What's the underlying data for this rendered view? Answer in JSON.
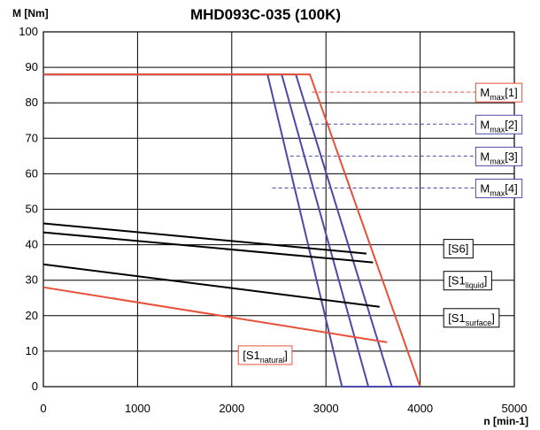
{
  "chart_data": {
    "type": "line",
    "title": "MHD093C-035 (100K)",
    "ylabel": "M [Nm]",
    "xlabel": "n [min-1]",
    "xlim": [
      0,
      5000
    ],
    "ylim": [
      0,
      100
    ],
    "xticks": [
      0,
      1000,
      2000,
      3000,
      4000,
      5000
    ],
    "yticks": [
      0,
      10,
      20,
      30,
      40,
      50,
      60,
      70,
      80,
      90,
      100
    ],
    "grid": true,
    "colors": {
      "red": "#e8503a",
      "blue": "#4a4aa8",
      "black": "#000000",
      "grid": "#000000"
    },
    "series": [
      {
        "name": "Mmax[1]",
        "color": "red",
        "points": [
          [
            0,
            88
          ],
          [
            2830,
            88
          ],
          [
            4000,
            0
          ]
        ]
      },
      {
        "name": "Mmax[2]",
        "color": "blue",
        "points": [
          [
            0,
            88
          ],
          [
            2680,
            88
          ],
          [
            3700,
            0
          ]
        ]
      },
      {
        "name": "Mmax[3]",
        "color": "blue",
        "points": [
          [
            0,
            88
          ],
          [
            2530,
            88
          ],
          [
            3450,
            0
          ]
        ]
      },
      {
        "name": "Mmax[4]",
        "color": "blue",
        "points": [
          [
            0,
            88
          ],
          [
            2380,
            88
          ],
          [
            3170,
            0
          ]
        ]
      },
      {
        "name": "S6",
        "color": "black",
        "points": [
          [
            0,
            46
          ],
          [
            3430,
            37.5
          ]
        ]
      },
      {
        "name": "S1liquid",
        "color": "black",
        "points": [
          [
            0,
            43.5
          ],
          [
            3500,
            35
          ]
        ]
      },
      {
        "name": "S1surface",
        "color": "black",
        "points": [
          [
            0,
            34.5
          ],
          [
            3570,
            22.5
          ]
        ]
      },
      {
        "name": "S1natural",
        "color": "red",
        "points": [
          [
            0,
            28
          ],
          [
            3650,
            12.5
          ]
        ]
      }
    ],
    "bottom_segment": {
      "color": "blue",
      "points": [
        [
          3170,
          0
        ],
        [
          4000,
          0
        ]
      ]
    },
    "labels": [
      {
        "id": "mmax1",
        "base": "M",
        "sub": "max",
        "suffix": "[1]",
        "color": "red",
        "box": true,
        "anchor": [
          4590,
          83
        ],
        "leader": [
          2850,
          83
        ]
      },
      {
        "id": "mmax2",
        "base": "M",
        "sub": "max",
        "suffix": "[2]",
        "color": "blue",
        "box": true,
        "anchor": [
          4590,
          74
        ],
        "leader": [
          2820,
          74
        ]
      },
      {
        "id": "mmax3",
        "base": "M",
        "sub": "max",
        "suffix": "[3]",
        "color": "blue",
        "box": true,
        "anchor": [
          4590,
          65
        ],
        "leader": [
          2620,
          65
        ]
      },
      {
        "id": "mmax4",
        "base": "M",
        "sub": "max",
        "suffix": "[4]",
        "color": "blue",
        "box": true,
        "anchor": [
          4590,
          56
        ],
        "leader": [
          2430,
          56
        ]
      },
      {
        "id": "s6",
        "base": "[S6]",
        "sub": "",
        "suffix": "",
        "color": "black",
        "box": true,
        "anchor": [
          4250,
          39
        ],
        "leader": null
      },
      {
        "id": "s1liquid",
        "base": "[S1",
        "sub": "liquid",
        "suffix": "]",
        "color": "black",
        "box": true,
        "anchor": [
          4250,
          30
        ],
        "leader": null
      },
      {
        "id": "s1surface",
        "base": "[S1",
        "sub": "surface",
        "suffix": "]",
        "color": "black",
        "box": true,
        "anchor": [
          4250,
          19.5
        ],
        "leader": null
      },
      {
        "id": "s1natural",
        "base": "[S1",
        "sub": "natural",
        "suffix": "]",
        "color": "red",
        "box": true,
        "anchor": [
          2070,
          9
        ],
        "leader": null
      }
    ]
  }
}
